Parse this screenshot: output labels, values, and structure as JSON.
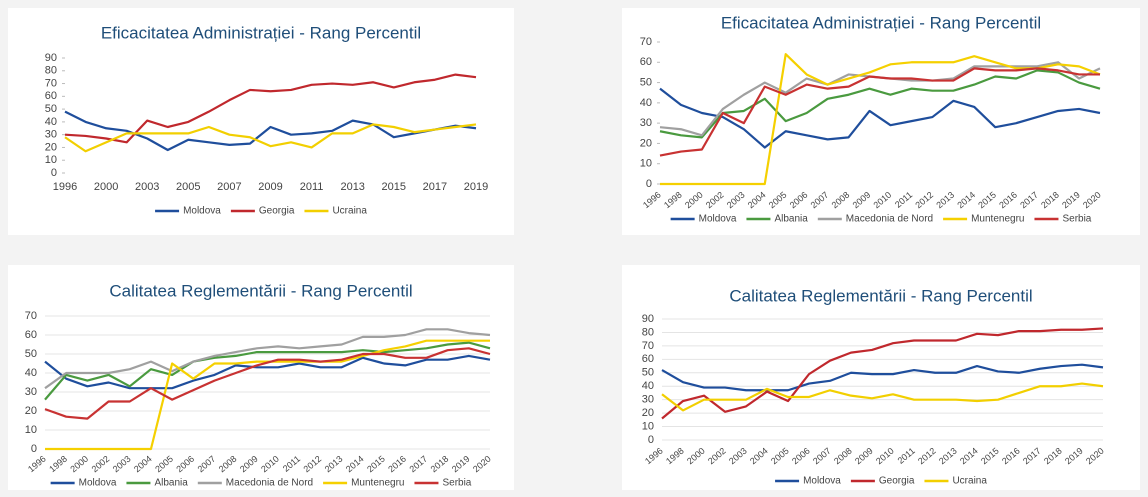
{
  "chart_data": [
    {
      "type": "line",
      "title": "Eficacitatea Administrației - Rang Percentil",
      "categories": [
        "1996",
        null,
        "2000",
        null,
        "2003",
        null,
        "2005",
        null,
        "2007",
        null,
        "2009",
        null,
        "2011",
        null,
        "2013",
        null,
        "2015",
        null,
        "2017",
        null,
        "2019"
      ],
      "ylim": [
        0,
        90
      ],
      "yticks": [
        0,
        10,
        20,
        30,
        40,
        50,
        60,
        70,
        80,
        90
      ],
      "grid": false,
      "series": [
        {
          "name": "Moldova",
          "color": "#1f4e9c",
          "values": [
            48,
            40,
            35,
            33,
            27,
            18,
            26,
            24,
            22,
            23,
            36,
            30,
            31,
            33,
            41,
            38,
            28,
            31,
            34,
            37,
            35
          ]
        },
        {
          "name": "Georgia",
          "color": "#c0282d",
          "values": [
            30,
            29,
            27,
            24,
            41,
            36,
            40,
            48,
            57,
            65,
            64,
            65,
            69,
            70,
            69,
            71,
            67,
            71,
            73,
            77,
            75
          ]
        },
        {
          "name": "Ucraina",
          "color": "#f2cf00",
          "values": [
            28,
            17,
            24,
            31,
            31,
            31,
            31,
            36,
            30,
            28,
            21,
            24,
            20,
            31,
            31,
            38,
            36,
            32,
            34,
            36,
            38
          ]
        }
      ]
    },
    {
      "type": "line",
      "title": "Eficacitatea Administrației - Rang Percentil",
      "categories": [
        "1996",
        "1998",
        "2000",
        "2002",
        "2003",
        "2004",
        "2005",
        "2006",
        "2007",
        "2008",
        "2009",
        "2010",
        "2011",
        "2012",
        "2013",
        "2014",
        "2015",
        "2016",
        "2017",
        "2018",
        "2019",
        "2020"
      ],
      "ylim": [
        0,
        70
      ],
      "yticks": [
        0,
        10,
        20,
        30,
        40,
        50,
        60,
        70
      ],
      "grid": false,
      "series": [
        {
          "name": "Moldova",
          "color": "#1f4e9c",
          "values": [
            47,
            39,
            35,
            33,
            27,
            18,
            26,
            24,
            22,
            23,
            36,
            29,
            31,
            33,
            41,
            38,
            28,
            30,
            33,
            36,
            37,
            35
          ]
        },
        {
          "name": "Albania",
          "color": "#4a9a3f",
          "values": [
            26,
            24,
            23,
            35,
            36,
            42,
            31,
            35,
            42,
            44,
            47,
            44,
            47,
            46,
            46,
            49,
            53,
            52,
            56,
            55,
            50,
            47
          ]
        },
        {
          "name": "Macedonia de Nord",
          "color": "#a0a0a0",
          "values": [
            28,
            27,
            24,
            37,
            44,
            50,
            45,
            52,
            49,
            54,
            53,
            52,
            51,
            51,
            52,
            58,
            58,
            58,
            58,
            60,
            52,
            57
          ]
        },
        {
          "name": "Muntenegru",
          "color": "#f5d000",
          "values": [
            0,
            0,
            0,
            0,
            0,
            0,
            64,
            54,
            49,
            52,
            55,
            59,
            60,
            60,
            60,
            63,
            60,
            57,
            57,
            59,
            58,
            54
          ]
        },
        {
          "name": "Serbia",
          "color": "#c83232",
          "values": [
            14,
            16,
            17,
            35,
            30,
            48,
            44,
            49,
            47,
            48,
            53,
            52,
            52,
            51,
            51,
            57,
            56,
            56,
            57,
            56,
            54,
            54
          ]
        }
      ]
    },
    {
      "type": "line",
      "title": "Calitatea Reglementării - Rang Percentil",
      "categories": [
        "1996",
        "1998",
        "2000",
        "2002",
        "2003",
        "2004",
        "2005",
        "2006",
        "2007",
        "2008",
        "2009",
        "2010",
        "2011",
        "2012",
        "2013",
        "2014",
        "2015",
        "2016",
        "2017",
        "2018",
        "2019",
        "2020"
      ],
      "ylim": [
        0,
        70
      ],
      "yticks": [
        0,
        10,
        20,
        30,
        40,
        50,
        60,
        70
      ],
      "grid": true,
      "series": [
        {
          "name": "Moldova",
          "color": "#1f4e9c",
          "values": [
            46,
            37,
            33,
            35,
            32,
            32,
            32,
            36,
            39,
            44,
            43,
            43,
            45,
            43,
            43,
            48,
            45,
            44,
            47,
            47,
            49,
            47
          ]
        },
        {
          "name": "Albania",
          "color": "#4a9a3f",
          "values": [
            26,
            39,
            36,
            39,
            33,
            42,
            39,
            46,
            48,
            49,
            51,
            51,
            51,
            51,
            51,
            52,
            51,
            52,
            53,
            55,
            56,
            53
          ]
        },
        {
          "name": "Macedonia de Nord",
          "color": "#a0a0a0",
          "values": [
            32,
            40,
            40,
            40,
            42,
            46,
            41,
            46,
            49,
            51,
            53,
            54,
            53,
            54,
            55,
            59,
            59,
            60,
            63,
            63,
            61,
            60
          ]
        },
        {
          "name": "Muntenegru",
          "color": "#f5d000",
          "values": [
            0,
            0,
            0,
            0,
            0,
            0,
            45,
            37,
            45,
            45,
            46,
            46,
            46,
            46,
            46,
            49,
            52,
            54,
            57,
            57,
            57,
            57
          ]
        },
        {
          "name": "Serbia",
          "color": "#c83232",
          "values": [
            21,
            17,
            16,
            25,
            25,
            32,
            26,
            31,
            36,
            40,
            44,
            47,
            47,
            46,
            47,
            50,
            50,
            48,
            48,
            52,
            53,
            50
          ]
        }
      ]
    },
    {
      "type": "line",
      "title": "Calitatea Reglementării - Rang Percentil",
      "categories": [
        "1996",
        "1998",
        "2000",
        "2002",
        "2003",
        "2004",
        "2005",
        "2006",
        "2007",
        "2008",
        "2009",
        "2010",
        "2011",
        "2012",
        "2013",
        "2014",
        "2015",
        "2016",
        "2017",
        "2018",
        "2019",
        "2020"
      ],
      "ylim": [
        0,
        90
      ],
      "yticks": [
        0,
        10,
        20,
        30,
        40,
        50,
        60,
        70,
        80,
        90
      ],
      "grid": true,
      "series": [
        {
          "name": "Moldova",
          "color": "#1f4e9c",
          "values": [
            52,
            43,
            39,
            39,
            37,
            37,
            37,
            42,
            44,
            50,
            49,
            49,
            52,
            50,
            50,
            55,
            51,
            50,
            53,
            55,
            56,
            54
          ]
        },
        {
          "name": "Georgia",
          "color": "#c0282d",
          "values": [
            16,
            29,
            33,
            21,
            25,
            36,
            29,
            49,
            59,
            65,
            67,
            72,
            74,
            74,
            74,
            79,
            78,
            81,
            81,
            82,
            82,
            83
          ]
        },
        {
          "name": "Ucraina",
          "color": "#f2cf00",
          "values": [
            34,
            22,
            30,
            30,
            30,
            38,
            32,
            32,
            37,
            33,
            31,
            34,
            30,
            30,
            30,
            29,
            30,
            35,
            40,
            40,
            42,
            40
          ]
        }
      ]
    }
  ]
}
